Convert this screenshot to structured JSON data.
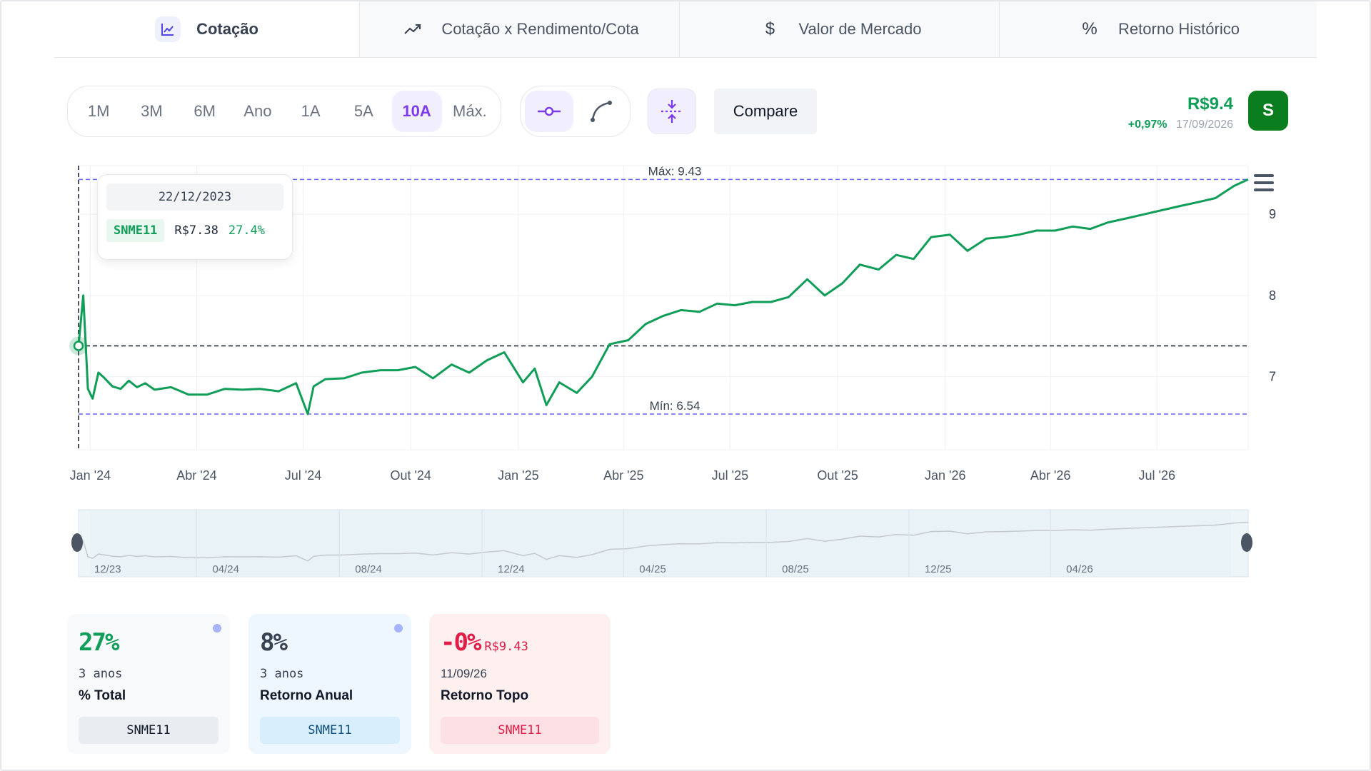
{
  "tabs": [
    {
      "label": "Cotação",
      "icon": "line-chart-icon",
      "active": true
    },
    {
      "label": "Cotação x Rendimento/Cota",
      "icon": "trending-up-icon",
      "active": false
    },
    {
      "label": "Valor de Mercado",
      "icon": "dollar-icon",
      "active": false
    },
    {
      "label": "Retorno Histórico",
      "icon": "percent-icon",
      "active": false
    }
  ],
  "periods": [
    "1M",
    "3M",
    "6M",
    "Ano",
    "1A",
    "5A",
    "10A",
    "Máx."
  ],
  "active_period": "10A",
  "compare_label": "Compare",
  "price": {
    "value": "R$9.4",
    "change": "+0,97%",
    "date": "17/09/2026"
  },
  "avatar_letter": "S",
  "colors": {
    "line": "#0f9d58",
    "accent": "#7c3aed",
    "ref_line": "#6366f1"
  },
  "tooltip": {
    "date": "22/12/2023",
    "ticker": "SNME11",
    "price": "R$7.38",
    "pct": "27.4%"
  },
  "chart_data": {
    "type": "line",
    "x_range": [
      "2023-12-22",
      "2026-09-17"
    ],
    "y_range": [
      6.1,
      9.6
    ],
    "x_ticks": [
      "Jan '24",
      "Abr '24",
      "Jul '24",
      "Out '24",
      "Jan '25",
      "Abr '25",
      "Jul '25",
      "Out '25",
      "Jan '26",
      "Abr '26",
      "Jul '26"
    ],
    "y_ticks": [
      9,
      8,
      7
    ],
    "max_label": "Máx: 9.43",
    "min_label": "Mín: 6.54",
    "max_value": 9.43,
    "min_value": 6.54,
    "crosshair_value": 7.38,
    "series": [
      {
        "x": [
          "2023-12-22",
          "2023-12-26",
          "2023-12-30",
          "2024-01-03",
          "2024-01-08",
          "2024-01-12",
          "2024-01-20",
          "2024-01-27",
          "2024-02-03",
          "2024-02-10",
          "2024-02-17",
          "2024-02-25",
          "2024-03-10",
          "2024-03-25",
          "2024-04-10",
          "2024-04-25",
          "2024-05-10",
          "2024-05-25",
          "2024-06-10",
          "2024-06-25",
          "2024-07-05",
          "2024-07-10",
          "2024-07-20",
          "2024-08-05",
          "2024-08-20",
          "2024-09-05",
          "2024-09-20",
          "2024-10-05",
          "2024-10-20",
          "2024-11-05",
          "2024-11-20",
          "2024-12-05",
          "2024-12-20",
          "2025-01-05",
          "2025-01-15",
          "2025-01-25",
          "2025-02-05",
          "2025-02-20",
          "2025-03-05",
          "2025-03-20",
          "2025-04-05",
          "2025-04-20",
          "2025-05-05",
          "2025-05-20",
          "2025-06-05",
          "2025-06-20",
          "2025-07-05",
          "2025-07-20",
          "2025-08-05",
          "2025-08-20",
          "2025-09-05",
          "2025-09-20",
          "2025-10-05",
          "2025-10-20",
          "2025-11-05",
          "2025-11-20",
          "2025-12-05",
          "2025-12-20",
          "2026-01-05",
          "2026-01-20",
          "2026-02-05",
          "2026-02-20",
          "2026-03-05",
          "2026-03-20",
          "2026-04-05",
          "2026-04-20",
          "2026-05-05",
          "2026-05-20",
          "2026-06-05",
          "2026-06-20",
          "2026-07-05",
          "2026-07-20",
          "2026-08-05",
          "2026-08-20",
          "2026-09-05",
          "2026-09-17"
        ],
        "values": [
          7.38,
          8.0,
          6.85,
          6.73,
          7.05,
          7.0,
          6.88,
          6.85,
          6.95,
          6.87,
          6.92,
          6.84,
          6.87,
          6.78,
          6.78,
          6.85,
          6.84,
          6.85,
          6.82,
          6.92,
          6.54,
          6.88,
          6.97,
          6.98,
          7.05,
          7.08,
          7.08,
          7.12,
          6.98,
          7.15,
          7.05,
          7.2,
          7.3,
          6.93,
          7.1,
          6.65,
          6.93,
          6.8,
          7.0,
          7.4,
          7.45,
          7.65,
          7.75,
          7.82,
          7.8,
          7.9,
          7.88,
          7.92,
          7.92,
          7.98,
          8.2,
          8.0,
          8.15,
          8.38,
          8.32,
          8.5,
          8.45,
          8.72,
          8.75,
          8.55,
          8.7,
          8.72,
          8.75,
          8.8,
          8.8,
          8.85,
          8.82,
          8.9,
          8.95,
          9.0,
          9.05,
          9.1,
          9.15,
          9.2,
          9.35,
          9.43
        ]
      }
    ],
    "navigator_ticks": [
      "12/23",
      "04/24",
      "08/24",
      "12/24",
      "04/25",
      "08/25",
      "12/25",
      "04/26"
    ]
  },
  "cards": [
    {
      "value": "27%",
      "sub": "3 anos",
      "label": "% Total",
      "ticker": "SNME11"
    },
    {
      "value": "8%",
      "sub": "3 anos",
      "label": "Retorno Anual",
      "ticker": "SNME11"
    },
    {
      "value": "-0%",
      "extra": "R$9.43",
      "sub": "11/09/26",
      "label": "Retorno Topo",
      "ticker": "SNME11"
    }
  ]
}
